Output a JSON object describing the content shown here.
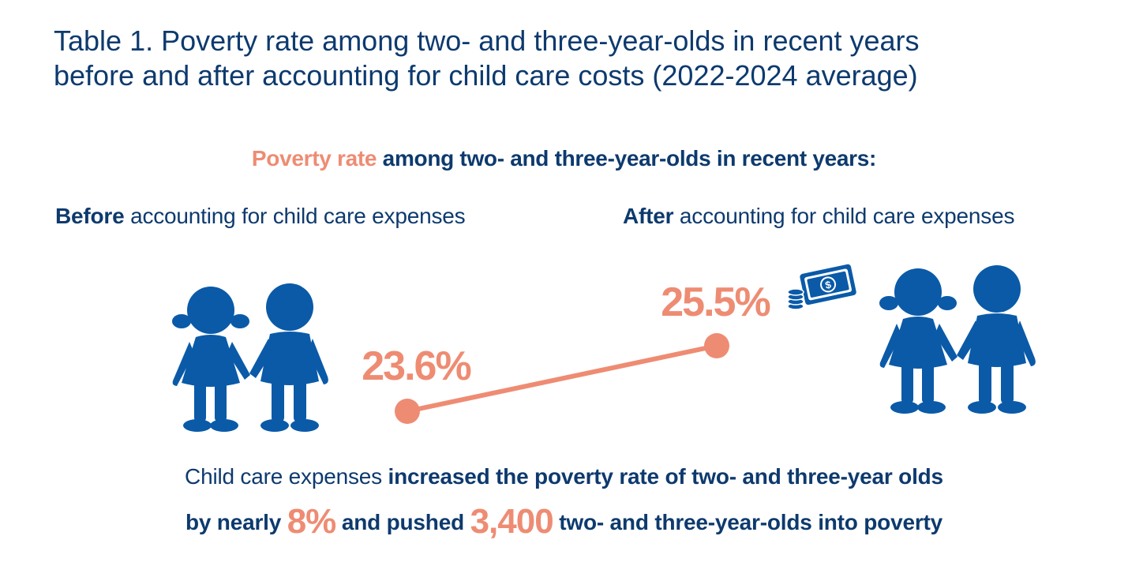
{
  "title": {
    "line1": "Table 1. Poverty rate among two- and three-year-olds in recent years",
    "line2": "before and after accounting for child care costs (2022-2024 average)"
  },
  "subtitle": {
    "accent": "Poverty rate",
    "rest": " among two- and three-year-olds in recent years:"
  },
  "columns": {
    "before": {
      "bold": "Before",
      "rest": " accounting for child care expenses"
    },
    "after": {
      "bold": "After",
      "rest": " accounting for child care expenses"
    }
  },
  "chart_data": {
    "type": "line",
    "categories": [
      "Before",
      "After"
    ],
    "values": [
      23.6,
      25.5
    ],
    "value_labels": [
      "23.6%",
      "25.5%"
    ],
    "unit": "%",
    "colors": {
      "line": "#ee8c73",
      "icons": "#0a5aa8",
      "text": "#0d3a6e"
    }
  },
  "icons": {
    "children_before": "two-children-holding-hands-icon",
    "children_after": "two-children-holding-hands-icon",
    "money": "money-bill-and-coins-icon"
  },
  "footer": {
    "line1_plain": "Child care expenses ",
    "line1_bold": "increased the poverty rate of two- and three-year olds",
    "line2_a": "by nearly ",
    "line2_big1": "8%",
    "line2_b": " and pushed ",
    "line2_big2": "3,400",
    "line2_c": " two- and three-year-olds into poverty"
  }
}
